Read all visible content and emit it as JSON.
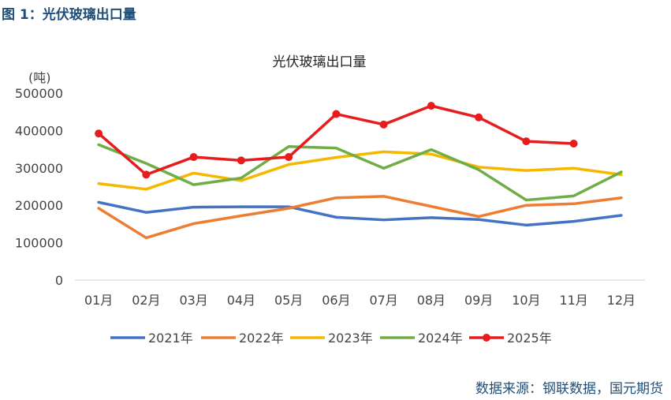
{
  "figure_label": "图 1：光伏玻璃出口量",
  "source": "数据来源：钢联数据，国元期货",
  "chart_data": {
    "type": "line",
    "title": "光伏玻璃出口量",
    "ylabel": "(吨)",
    "ylim": [
      0,
      500000
    ],
    "yticks": [
      0,
      100000,
      200000,
      300000,
      400000,
      500000
    ],
    "ytick_labels": [
      "0",
      "100000",
      "200000",
      "300000",
      "400000",
      "500000"
    ],
    "categories": [
      "01月",
      "02月",
      "03月",
      "04月",
      "05月",
      "06月",
      "07月",
      "08月",
      "09月",
      "10月",
      "11月",
      "12月"
    ],
    "grid": false,
    "legend": "bottom",
    "series": [
      {
        "name": "2021年",
        "color": "#4472c4",
        "markers": false,
        "values": [
          208000,
          181000,
          195000,
          196000,
          196000,
          168000,
          161000,
          167000,
          162000,
          147000,
          157000,
          173000
        ]
      },
      {
        "name": "2022年",
        "color": "#ed7d31",
        "markers": false,
        "values": [
          192000,
          113000,
          151000,
          172000,
          192000,
          220000,
          224000,
          197000,
          170000,
          200000,
          204000,
          220000
        ]
      },
      {
        "name": "2023年",
        "color": "#f5b800",
        "markers": false,
        "values": [
          258000,
          243000,
          286000,
          266000,
          309000,
          328000,
          343000,
          337000,
          302000,
          293000,
          299000,
          282000
        ]
      },
      {
        "name": "2024年",
        "color": "#70ad47",
        "markers": false,
        "values": [
          362000,
          312000,
          255000,
          273000,
          357000,
          353000,
          299000,
          349000,
          295000,
          214000,
          225000,
          289000
        ]
      },
      {
        "name": "2025年",
        "color": "#e81c1c",
        "markers": true,
        "values": [
          392000,
          282000,
          329000,
          320000,
          329000,
          444000,
          416000,
          466000,
          435000,
          371000,
          365000,
          null
        ]
      }
    ]
  }
}
